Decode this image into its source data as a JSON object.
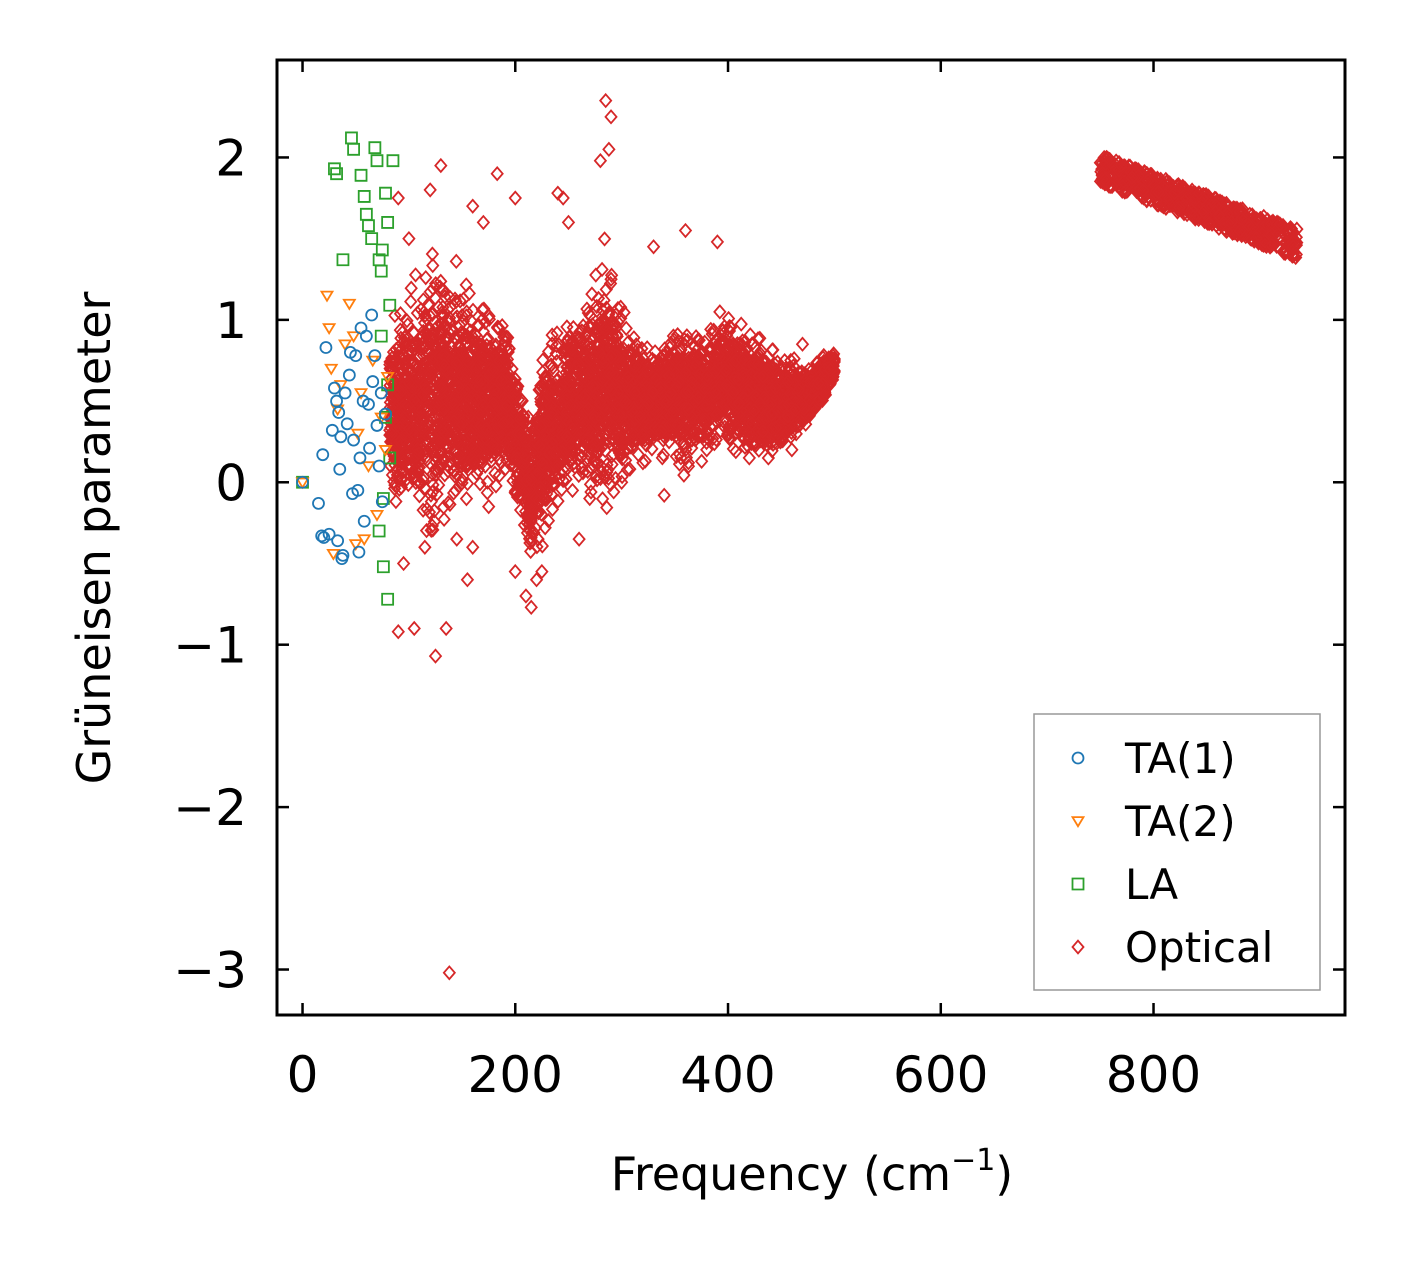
{
  "chart_data": {
    "type": "scatter",
    "title": "",
    "xlabel": "Frequency (cm",
    "xlabel_sup": "−1",
    "xlabel_close": ")",
    "ylabel": "Grüneisen parameter",
    "xlim": [
      -24,
      980
    ],
    "ylim": [
      -3.28,
      2.6
    ],
    "xticks": [
      0,
      200,
      400,
      600,
      800
    ],
    "xtick_labels": [
      "0",
      "200",
      "400",
      "600",
      "800"
    ],
    "yticks": [
      -3,
      -2,
      -1,
      0,
      1,
      2
    ],
    "ytick_labels": [
      "−3",
      "−2",
      "−1",
      "0",
      "1",
      "2"
    ],
    "legend_position": "lower-right",
    "series": [
      {
        "name": "TA(1)",
        "marker": "circle",
        "color": "#1f77b4",
        "points": [
          [
            0,
            0
          ],
          [
            18,
            -0.33
          ],
          [
            20,
            -0.34
          ],
          [
            22,
            0.83
          ],
          [
            25,
            -0.32
          ],
          [
            28,
            0.32
          ],
          [
            30,
            0.58
          ],
          [
            32,
            0.5
          ],
          [
            34,
            0.43
          ],
          [
            35,
            0.08
          ],
          [
            36,
            0.28
          ],
          [
            37,
            -0.47
          ],
          [
            38,
            -0.45
          ],
          [
            40,
            0.55
          ],
          [
            42,
            0.36
          ],
          [
            44,
            0.66
          ],
          [
            45,
            0.8
          ],
          [
            47,
            -0.07
          ],
          [
            48,
            0.26
          ],
          [
            50,
            0.78
          ],
          [
            52,
            -0.05
          ],
          [
            53,
            -0.43
          ],
          [
            54,
            0.15
          ],
          [
            55,
            0.95
          ],
          [
            57,
            0.5
          ],
          [
            58,
            -0.24
          ],
          [
            60,
            0.9
          ],
          [
            62,
            0.48
          ],
          [
            63,
            0.21
          ],
          [
            65,
            1.03
          ],
          [
            66,
            0.62
          ],
          [
            68,
            0.78
          ],
          [
            70,
            0.35
          ],
          [
            72,
            0.1
          ],
          [
            74,
            0.55
          ],
          [
            75,
            -0.12
          ],
          [
            78,
            0.42
          ],
          [
            19,
            0.17
          ],
          [
            15,
            -0.13
          ],
          [
            33,
            -0.36
          ]
        ]
      },
      {
        "name": "TA(2)",
        "marker": "triangle-down",
        "color": "#ff7f0e",
        "points": [
          [
            0,
            0
          ],
          [
            23,
            1.15
          ],
          [
            25,
            0.95
          ],
          [
            27,
            0.7
          ],
          [
            29,
            -0.44
          ],
          [
            33,
            0.45
          ],
          [
            36,
            0.6
          ],
          [
            40,
            0.85
          ],
          [
            44,
            1.1
          ],
          [
            48,
            0.9
          ],
          [
            52,
            0.3
          ],
          [
            55,
            0.55
          ],
          [
            58,
            -0.35
          ],
          [
            62,
            0.1
          ],
          [
            66,
            0.75
          ],
          [
            70,
            -0.2
          ],
          [
            74,
            0.4
          ],
          [
            78,
            0.2
          ],
          [
            80,
            0.65
          ],
          [
            50,
            -0.38
          ]
        ]
      },
      {
        "name": "LA",
        "marker": "square",
        "color": "#2ca02c",
        "points": [
          [
            0,
            0
          ],
          [
            38,
            1.37
          ],
          [
            46,
            2.12
          ],
          [
            48,
            2.05
          ],
          [
            30,
            1.93
          ],
          [
            32,
            1.9
          ],
          [
            55,
            1.89
          ],
          [
            58,
            1.76
          ],
          [
            60,
            1.65
          ],
          [
            62,
            1.58
          ],
          [
            65,
            1.5
          ],
          [
            68,
            2.06
          ],
          [
            70,
            1.98
          ],
          [
            72,
            1.37
          ],
          [
            74,
            1.3
          ],
          [
            75,
            1.43
          ],
          [
            78,
            1.78
          ],
          [
            80,
            1.6
          ],
          [
            82,
            1.09
          ],
          [
            85,
            1.98
          ],
          [
            76,
            -0.52
          ],
          [
            80,
            -0.72
          ],
          [
            72,
            -0.3
          ],
          [
            78,
            0.4
          ],
          [
            80,
            0.6
          ],
          [
            82,
            0.15
          ],
          [
            74,
            0.9
          ],
          [
            76,
            -0.1
          ]
        ]
      },
      {
        "name": "Optical",
        "marker": "diamond",
        "color": "#d62728",
        "cloud": {
          "x_range": [
            82,
            500
          ],
          "centers": [
            [
              82,
              0.45
            ],
            [
              110,
              0.45
            ],
            [
              130,
              0.55
            ],
            [
              150,
              0.5
            ],
            [
              170,
              0.5
            ],
            [
              190,
              0.5
            ],
            [
              205,
              0.2
            ],
            [
              215,
              -0.05
            ],
            [
              230,
              0.3
            ],
            [
              250,
              0.5
            ],
            [
              270,
              0.55
            ],
            [
              285,
              0.6
            ],
            [
              300,
              0.55
            ],
            [
              320,
              0.5
            ],
            [
              340,
              0.5
            ],
            [
              360,
              0.55
            ],
            [
              380,
              0.55
            ],
            [
              400,
              0.65
            ],
            [
              420,
              0.55
            ],
            [
              440,
              0.5
            ],
            [
              460,
              0.5
            ],
            [
              480,
              0.55
            ],
            [
              500,
              0.72
            ]
          ],
          "halfwidths": [
            [
              82,
              0.6
            ],
            [
              120,
              1.1
            ],
            [
              140,
              0.9
            ],
            [
              170,
              0.75
            ],
            [
              200,
              0.5
            ],
            [
              215,
              0.55
            ],
            [
              235,
              0.7
            ],
            [
              260,
              0.6
            ],
            [
              285,
              0.95
            ],
            [
              300,
              0.6
            ],
            [
              320,
              0.4
            ],
            [
              340,
              0.4
            ],
            [
              360,
              0.6
            ],
            [
              380,
              0.4
            ],
            [
              400,
              0.55
            ],
            [
              430,
              0.45
            ],
            [
              460,
              0.3
            ],
            [
              500,
              0.12
            ]
          ]
        },
        "band": {
          "x_range": [
            750,
            935
          ],
          "y_start": 1.93,
          "y_end": 1.47,
          "thickness": 0.09
        },
        "points": [
          [
            138,
            -3.02
          ],
          [
            90,
            -0.92
          ],
          [
            105,
            -0.9
          ],
          [
            125,
            -1.07
          ],
          [
            135,
            -0.9
          ],
          [
            155,
            -0.6
          ],
          [
            160,
            -0.4
          ],
          [
            285,
            2.35
          ],
          [
            290,
            2.25
          ],
          [
            288,
            2.05
          ],
          [
            280,
            1.98
          ],
          [
            183,
            1.9
          ],
          [
            240,
            1.78
          ],
          [
            245,
            1.75
          ],
          [
            250,
            1.6
          ],
          [
            360,
            1.55
          ],
          [
            390,
            1.48
          ],
          [
            215,
            -0.77
          ],
          [
            210,
            -0.7
          ],
          [
            200,
            -0.55
          ],
          [
            220,
            -0.6
          ],
          [
            225,
            -0.55
          ],
          [
            380,
            0.2
          ],
          [
            420,
            0.15
          ],
          [
            340,
            -0.08
          ],
          [
            460,
            0.2
          ],
          [
            470,
            0.85
          ],
          [
            490,
            0.78
          ],
          [
            130,
            1.95
          ],
          [
            90,
            1.75
          ],
          [
            120,
            1.8
          ],
          [
            100,
            1.5
          ],
          [
            95,
            -0.5
          ],
          [
            115,
            -0.4
          ],
          [
            145,
            -0.35
          ],
          [
            175,
            -0.15
          ],
          [
            260,
            -0.35
          ],
          [
            270,
            -0.1
          ],
          [
            300,
            0.0
          ],
          [
            320,
            0.12
          ],
          [
            160,
            1.7
          ],
          [
            170,
            1.6
          ],
          [
            200,
            1.75
          ],
          [
            330,
            1.45
          ]
        ]
      }
    ]
  }
}
